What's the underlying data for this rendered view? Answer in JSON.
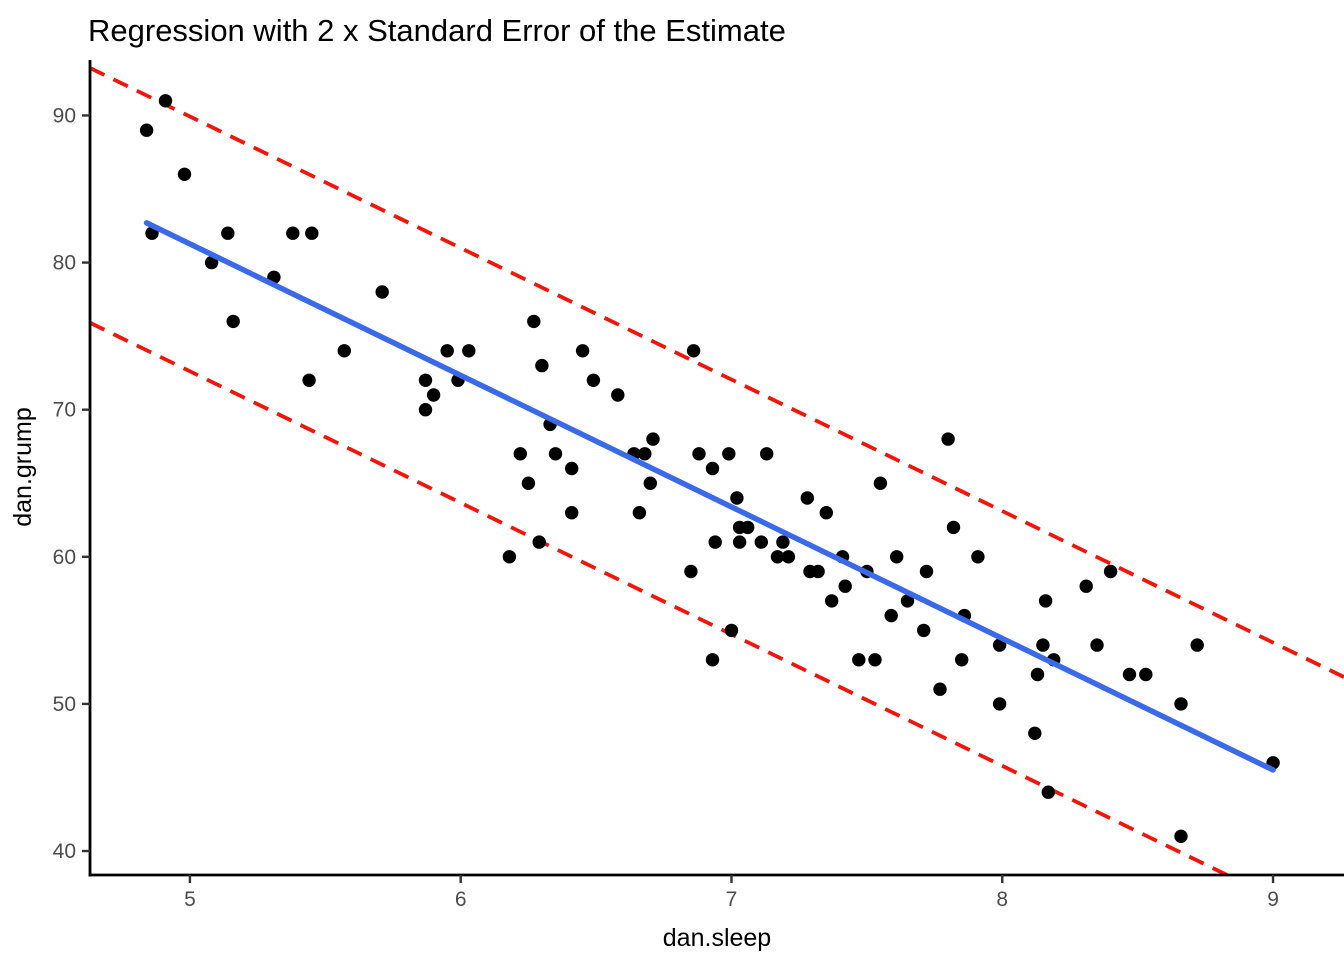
{
  "chart_data": {
    "type": "scatter",
    "title": "Regression with 2 x Standard Error of the Estimate",
    "xlabel": "dan.sleep",
    "ylabel": "dan.grump",
    "grid": false,
    "legend": "none",
    "axes": {
      "x": {
        "lim": [
          4.631,
          9.262
        ],
        "ticks": [
          5,
          6,
          7,
          8,
          9
        ]
      },
      "y": {
        "lim": [
          38.37,
          93.77
        ],
        "ticks": [
          40,
          50,
          60,
          70,
          80,
          90
        ]
      }
    },
    "regression_line": {
      "intercept": 125.97,
      "slope": -8.94,
      "x_range": [
        4.84,
        9.0
      ],
      "style": "solid"
    },
    "error_bands": {
      "offset_from_line": 8.66,
      "description": "2 x standard error of the estimate",
      "style": "dashed"
    },
    "points": [
      [
        4.84,
        89
      ],
      [
        4.86,
        82
      ],
      [
        4.91,
        91
      ],
      [
        4.98,
        86
      ],
      [
        5.08,
        80
      ],
      [
        5.14,
        82
      ],
      [
        5.16,
        76
      ],
      [
        5.31,
        79
      ],
      [
        5.38,
        82
      ],
      [
        5.44,
        72
      ],
      [
        5.45,
        82
      ],
      [
        5.57,
        74
      ],
      [
        5.71,
        78
      ],
      [
        5.87,
        72
      ],
      [
        5.87,
        70
      ],
      [
        5.9,
        71
      ],
      [
        5.95,
        74
      ],
      [
        5.99,
        72
      ],
      [
        6.03,
        74
      ],
      [
        6.18,
        60
      ],
      [
        6.22,
        67
      ],
      [
        6.25,
        65
      ],
      [
        6.27,
        76
      ],
      [
        6.29,
        61
      ],
      [
        6.3,
        73
      ],
      [
        6.33,
        69
      ],
      [
        6.35,
        67
      ],
      [
        6.41,
        66
      ],
      [
        6.41,
        63
      ],
      [
        6.45,
        74
      ],
      [
        6.49,
        72
      ],
      [
        6.58,
        71
      ],
      [
        6.64,
        67
      ],
      [
        6.66,
        63
      ],
      [
        6.68,
        67
      ],
      [
        6.7,
        65
      ],
      [
        6.71,
        68
      ],
      [
        6.85,
        59
      ],
      [
        6.86,
        74
      ],
      [
        6.88,
        67
      ],
      [
        6.93,
        66
      ],
      [
        6.93,
        53
      ],
      [
        6.94,
        61
      ],
      [
        6.99,
        67
      ],
      [
        7.0,
        55
      ],
      [
        7.02,
        64
      ],
      [
        7.03,
        62
      ],
      [
        7.03,
        61
      ],
      [
        7.06,
        62
      ],
      [
        7.11,
        61
      ],
      [
        7.13,
        67
      ],
      [
        7.17,
        60
      ],
      [
        7.19,
        61
      ],
      [
        7.21,
        60
      ],
      [
        7.28,
        64
      ],
      [
        7.29,
        59
      ],
      [
        7.32,
        59
      ],
      [
        7.35,
        63
      ],
      [
        7.37,
        57
      ],
      [
        7.41,
        60
      ],
      [
        7.42,
        58
      ],
      [
        7.47,
        53
      ],
      [
        7.5,
        59
      ],
      [
        7.53,
        53
      ],
      [
        7.55,
        65
      ],
      [
        7.59,
        56
      ],
      [
        7.61,
        60
      ],
      [
        7.65,
        57
      ],
      [
        7.71,
        55
      ],
      [
        7.72,
        59
      ],
      [
        7.77,
        51
      ],
      [
        7.8,
        68
      ],
      [
        7.82,
        62
      ],
      [
        7.85,
        53
      ],
      [
        7.86,
        56
      ],
      [
        7.91,
        60
      ],
      [
        7.99,
        54
      ],
      [
        7.99,
        50
      ],
      [
        8.12,
        48
      ],
      [
        8.13,
        52
      ],
      [
        8.15,
        54
      ],
      [
        8.16,
        57
      ],
      [
        8.17,
        44
      ],
      [
        8.19,
        53
      ],
      [
        8.31,
        58
      ],
      [
        8.35,
        54
      ],
      [
        8.4,
        59
      ],
      [
        8.47,
        52
      ],
      [
        8.53,
        52
      ],
      [
        8.66,
        50
      ],
      [
        8.66,
        41
      ],
      [
        8.72,
        54
      ],
      [
        9.0,
        46
      ]
    ],
    "colors": {
      "point": "#000000",
      "regression_line": "#3A6AEA",
      "error_band": "#F4150A",
      "axis_line": "#000000",
      "tick_mark": "#333333",
      "tick_label": "#4d4d4d",
      "background": "#ffffff"
    }
  }
}
